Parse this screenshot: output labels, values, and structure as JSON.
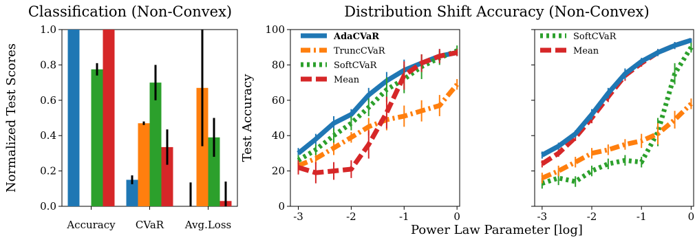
{
  "chart_data": [
    {
      "type": "bar",
      "title": "Classification (Non-Convex)",
      "xlabel": "",
      "ylabel": "Normalized Test Scores",
      "ylim": [
        0,
        1
      ],
      "yticks": [
        "0.0",
        "0.2",
        "0.4",
        "0.6",
        "0.8",
        "1.0"
      ],
      "categories": [
        "Accuracy",
        "CVaR",
        "Avg.Loss"
      ],
      "grid": false,
      "series": [
        {
          "color": "#1f77b4",
          "values": [
            1.0,
            0.15,
            0.0
          ],
          "err": [
            0.0,
            0.025,
            0.135
          ]
        },
        {
          "color": "#ff7f0e",
          "values": [
            0.0,
            0.47,
            0.67
          ],
          "err": [
            0.0,
            0.01,
            0.33
          ]
        },
        {
          "color": "#2ca02c",
          "values": [
            0.775,
            0.7,
            0.39
          ],
          "err": [
            0.035,
            0.1,
            0.11
          ]
        },
        {
          "color": "#d62728",
          "values": [
            1.0,
            0.335,
            0.03
          ],
          "err": [
            0.0,
            0.1,
            0.11
          ]
        }
      ]
    },
    {
      "type": "line",
      "title": "Distribution Shift Accuracy (Non-Convex)",
      "xlabel": "Power Law Parameter [log]",
      "ylabel": "Test Accuracy",
      "ylim": [
        0,
        100
      ],
      "xlim": [
        -3.15,
        0.05
      ],
      "xticks": [
        "-3",
        "-2",
        "-1",
        "0"
      ],
      "yticks": [
        "0",
        "20",
        "40",
        "60",
        "80",
        "100"
      ],
      "grid": false,
      "legend": "top-left",
      "series": [
        {
          "name": "AdaCVaR",
          "color": "#1f77b4",
          "style": "solid",
          "bold": true,
          "x": [
            -3,
            -2.67,
            -2.33,
            -2,
            -1.67,
            -1.33,
            -1,
            -0.67,
            -0.33,
            0
          ],
          "y": [
            30,
            38,
            47,
            52,
            63,
            71,
            77,
            81,
            85,
            87
          ],
          "err": [
            3,
            3,
            4,
            3,
            4,
            5,
            6,
            5,
            4,
            2
          ]
        },
        {
          "name": "TruncCVaR",
          "color": "#ff7f0e",
          "style": "dashdot",
          "x": [
            -3,
            -2.67,
            -2.33,
            -2,
            -1.67,
            -1.33,
            -1,
            -0.67,
            -0.33,
            0
          ],
          "y": [
            23,
            27,
            33,
            39,
            45,
            49,
            51,
            54,
            57,
            69
          ],
          "err": [
            3,
            3,
            4,
            3,
            5,
            6,
            6,
            6,
            6,
            3
          ]
        },
        {
          "name": "SoftCVaR",
          "color": "#2ca02c",
          "style": "dotted",
          "x": [
            -3,
            -2.67,
            -2.33,
            -2,
            -1.67,
            -1.33,
            -1,
            -0.67,
            -0.33,
            0
          ],
          "y": [
            26,
            32,
            40,
            47,
            56,
            66,
            72,
            79,
            84,
            88
          ],
          "err": [
            3,
            3,
            4,
            4,
            5,
            7,
            8,
            7,
            4,
            3
          ]
        },
        {
          "name": "Mean",
          "color": "#d62728",
          "style": "dashed",
          "x": [
            -3,
            -2.67,
            -2.33,
            -2,
            -1.67,
            -1.33,
            -1,
            -0.67,
            -0.33,
            0
          ],
          "y": [
            22,
            19,
            20,
            21,
            35,
            53,
            74,
            81,
            85,
            87
          ],
          "err": [
            4,
            6,
            5,
            5,
            8,
            9,
            8,
            5,
            4,
            2
          ]
        }
      ]
    },
    {
      "type": "line",
      "title": "",
      "xlabel": "Power Law Parameter [log]",
      "ylabel": "",
      "ylim": [
        0,
        100
      ],
      "xlim": [
        -3.15,
        0.05
      ],
      "xticks": [
        "-3",
        "-2",
        "-1",
        "0"
      ],
      "yticks": [
        "0",
        "20",
        "40",
        "60",
        "80",
        "100"
      ],
      "grid": false,
      "legend": "top-left",
      "series": [
        {
          "name": "SoftCVaR",
          "color": "#2ca02c",
          "style": "dotted",
          "x": [
            -3,
            -2.67,
            -2.33,
            -2,
            -1.67,
            -1.33,
            -1,
            -0.67,
            -0.33,
            0
          ],
          "y": [
            13,
            16,
            14,
            20,
            24,
            26,
            25,
            42,
            75,
            90
          ],
          "err": [
            3,
            4,
            3,
            3,
            3,
            3,
            3,
            8,
            6,
            3
          ]
        },
        {
          "name": "Mean",
          "color": "#d62728",
          "style": "dashed",
          "x": [
            -3,
            -2.67,
            -2.33,
            -2,
            -1.67,
            -1.33,
            -1,
            -0.67,
            -0.33,
            0
          ],
          "y": [
            24,
            30,
            39,
            50,
            62,
            74,
            81,
            87,
            91,
            94
          ],
          "err": [
            2,
            2,
            2,
            3,
            3,
            3,
            2,
            2,
            2,
            1
          ]
        },
        {
          "name": "",
          "color": "#1f77b4",
          "style": "solid",
          "x": [
            -3,
            -2.67,
            -2.33,
            -2,
            -1.67,
            -1.33,
            -1,
            -0.67,
            -0.33,
            0
          ],
          "y": [
            29,
            34,
            41,
            52,
            64,
            75,
            82,
            87,
            91,
            94
          ],
          "err": [
            2,
            2,
            2,
            3,
            3,
            3,
            2,
            2,
            2,
            1
          ]
        },
        {
          "name": "",
          "color": "#ff7f0e",
          "style": "dashdot",
          "x": [
            -3,
            -2.67,
            -2.33,
            -2,
            -1.67,
            -1.33,
            -1,
            -0.67,
            -0.33,
            0
          ],
          "y": [
            16,
            20,
            25,
            30,
            32,
            35,
            37,
            41,
            49,
            58
          ],
          "err": [
            3,
            3,
            3,
            3,
            3,
            3,
            4,
            6,
            5,
            3
          ]
        }
      ]
    }
  ]
}
